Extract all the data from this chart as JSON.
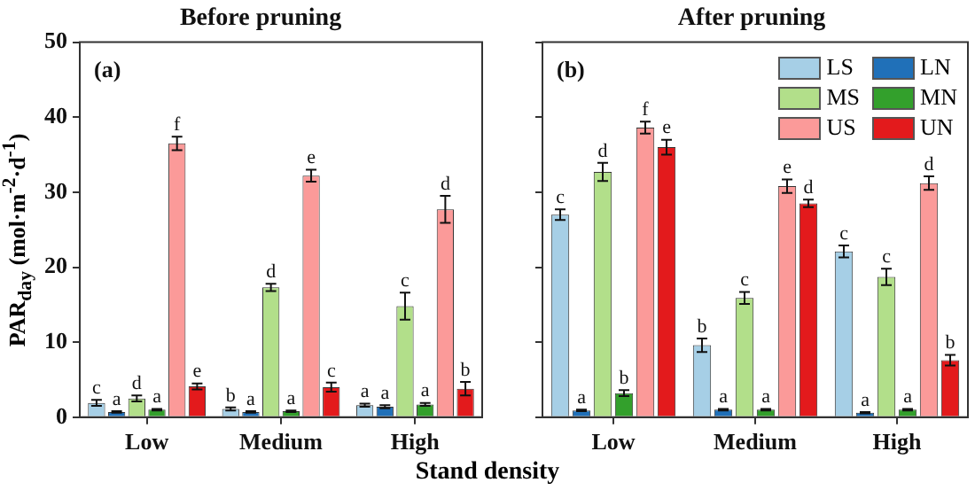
{
  "chart_data": [
    {
      "type": "bar",
      "title": "Before pruning",
      "xlabel": "Stand density",
      "ylabel": "PAR$_{day}$ (mol·m$^{-2}$·d$^{-1}$)",
      "annotations": [
        "(a)"
      ],
      "categories": [
        "Low",
        "Medium",
        "High"
      ],
      "ylim": [
        0,
        50
      ],
      "yticks": [
        0,
        10,
        20,
        30,
        40,
        50
      ],
      "grid": false,
      "legend": false,
      "series": [
        {
          "color": "#a6cfe6",
          "values": [
            1.9,
            1.1,
            1.6
          ],
          "errors": [
            0.4,
            0.2,
            0.2
          ],
          "value_labels": [
            "c",
            "b",
            "a"
          ]
        },
        {
          "color": "#2070b8",
          "values": [
            0.7,
            0.7,
            1.4
          ],
          "errors": [
            0.1,
            0.1,
            0.2
          ],
          "value_labels": [
            "a",
            "a",
            "a"
          ]
        },
        {
          "color": "#b2df8a",
          "values": [
            2.5,
            17.3,
            14.8
          ],
          "errors": [
            0.4,
            0.5,
            1.8
          ],
          "value_labels": [
            "d",
            "d",
            "c"
          ]
        },
        {
          "color": "#33a02c",
          "values": [
            1.0,
            0.8,
            1.7
          ],
          "errors": [
            0.1,
            0.1,
            0.2
          ],
          "value_labels": [
            "a",
            "a",
            "a"
          ]
        },
        {
          "color": "#fb9a99",
          "values": [
            36.5,
            32.2,
            27.7
          ],
          "errors": [
            0.9,
            0.8,
            1.8
          ],
          "value_labels": [
            "f",
            "e",
            "d"
          ]
        },
        {
          "color": "#e31a1c",
          "values": [
            4.1,
            4.0,
            3.8
          ],
          "errors": [
            0.4,
            0.6,
            0.9
          ],
          "value_labels": [
            "e",
            "c",
            "b"
          ]
        }
      ]
    },
    {
      "type": "bar",
      "title": "After pruning",
      "annotations": [
        "(b)"
      ],
      "categories": [
        "Low",
        "Medium",
        "High"
      ],
      "ylim": [
        0,
        50
      ],
      "yticks": [
        0,
        10,
        20,
        30,
        40,
        50
      ],
      "tick_labels": "x",
      "grid": false,
      "legend": "top right",
      "series": [
        {
          "name": "LS",
          "color": "#a6cfe6",
          "values": [
            27.0,
            9.6,
            22.1
          ],
          "errors": [
            0.7,
            0.9,
            0.8
          ],
          "value_labels": [
            "c",
            "b",
            "c"
          ]
        },
        {
          "name": "LN",
          "color": "#2070b8",
          "values": [
            0.9,
            1.0,
            0.6
          ],
          "errors": [
            0.1,
            0.1,
            0.1
          ],
          "value_labels": [
            "a",
            "a",
            "a"
          ]
        },
        {
          "name": "MS",
          "color": "#b2df8a",
          "values": [
            32.7,
            15.9,
            18.7
          ],
          "errors": [
            1.2,
            0.8,
            1.1
          ],
          "value_labels": [
            "d",
            "c",
            "c"
          ]
        },
        {
          "name": "MN",
          "color": "#33a02c",
          "values": [
            3.2,
            1.0,
            1.0
          ],
          "errors": [
            0.4,
            0.1,
            0.1
          ],
          "value_labels": [
            "b",
            "a",
            "a"
          ]
        },
        {
          "name": "US",
          "color": "#fb9a99",
          "values": [
            38.6,
            30.8,
            31.2
          ],
          "errors": [
            0.8,
            0.9,
            0.9
          ],
          "value_labels": [
            "f",
            "e",
            "d"
          ]
        },
        {
          "name": "UN",
          "color": "#e31a1c",
          "values": [
            36.0,
            28.5,
            7.6
          ],
          "errors": [
            1.0,
            0.5,
            0.7
          ],
          "value_labels": [
            "e",
            "d",
            "b"
          ]
        }
      ]
    }
  ]
}
